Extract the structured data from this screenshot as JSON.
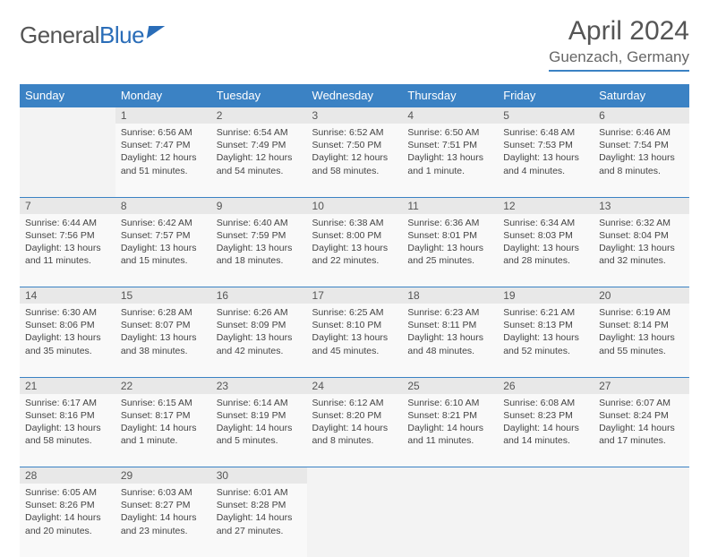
{
  "logo": {
    "word1": "General",
    "word2": "Blue"
  },
  "title": "April 2024",
  "location": "Guenzach, Germany",
  "colors": {
    "header_bg": "#3b82c4",
    "header_text": "#ffffff",
    "daynum_bg": "#e8e8e8",
    "cell_bg": "#f9f9f9",
    "empty_bg": "#f3f3f3",
    "border": "#3b82c4",
    "text": "#444444",
    "title_text": "#555555"
  },
  "layout": {
    "columns": 7,
    "rows": 5,
    "cell_font_size_pt": 8,
    "header_font_size_pt": 10,
    "title_font_size_pt": 22
  },
  "weekdays": [
    "Sunday",
    "Monday",
    "Tuesday",
    "Wednesday",
    "Thursday",
    "Friday",
    "Saturday"
  ],
  "weeks": [
    [
      null,
      {
        "n": "1",
        "sr": "Sunrise: 6:56 AM",
        "ss": "Sunset: 7:47 PM",
        "d1": "Daylight: 12 hours",
        "d2": "and 51 minutes."
      },
      {
        "n": "2",
        "sr": "Sunrise: 6:54 AM",
        "ss": "Sunset: 7:49 PM",
        "d1": "Daylight: 12 hours",
        "d2": "and 54 minutes."
      },
      {
        "n": "3",
        "sr": "Sunrise: 6:52 AM",
        "ss": "Sunset: 7:50 PM",
        "d1": "Daylight: 12 hours",
        "d2": "and 58 minutes."
      },
      {
        "n": "4",
        "sr": "Sunrise: 6:50 AM",
        "ss": "Sunset: 7:51 PM",
        "d1": "Daylight: 13 hours",
        "d2": "and 1 minute."
      },
      {
        "n": "5",
        "sr": "Sunrise: 6:48 AM",
        "ss": "Sunset: 7:53 PM",
        "d1": "Daylight: 13 hours",
        "d2": "and 4 minutes."
      },
      {
        "n": "6",
        "sr": "Sunrise: 6:46 AM",
        "ss": "Sunset: 7:54 PM",
        "d1": "Daylight: 13 hours",
        "d2": "and 8 minutes."
      }
    ],
    [
      {
        "n": "7",
        "sr": "Sunrise: 6:44 AM",
        "ss": "Sunset: 7:56 PM",
        "d1": "Daylight: 13 hours",
        "d2": "and 11 minutes."
      },
      {
        "n": "8",
        "sr": "Sunrise: 6:42 AM",
        "ss": "Sunset: 7:57 PM",
        "d1": "Daylight: 13 hours",
        "d2": "and 15 minutes."
      },
      {
        "n": "9",
        "sr": "Sunrise: 6:40 AM",
        "ss": "Sunset: 7:59 PM",
        "d1": "Daylight: 13 hours",
        "d2": "and 18 minutes."
      },
      {
        "n": "10",
        "sr": "Sunrise: 6:38 AM",
        "ss": "Sunset: 8:00 PM",
        "d1": "Daylight: 13 hours",
        "d2": "and 22 minutes."
      },
      {
        "n": "11",
        "sr": "Sunrise: 6:36 AM",
        "ss": "Sunset: 8:01 PM",
        "d1": "Daylight: 13 hours",
        "d2": "and 25 minutes."
      },
      {
        "n": "12",
        "sr": "Sunrise: 6:34 AM",
        "ss": "Sunset: 8:03 PM",
        "d1": "Daylight: 13 hours",
        "d2": "and 28 minutes."
      },
      {
        "n": "13",
        "sr": "Sunrise: 6:32 AM",
        "ss": "Sunset: 8:04 PM",
        "d1": "Daylight: 13 hours",
        "d2": "and 32 minutes."
      }
    ],
    [
      {
        "n": "14",
        "sr": "Sunrise: 6:30 AM",
        "ss": "Sunset: 8:06 PM",
        "d1": "Daylight: 13 hours",
        "d2": "and 35 minutes."
      },
      {
        "n": "15",
        "sr": "Sunrise: 6:28 AM",
        "ss": "Sunset: 8:07 PM",
        "d1": "Daylight: 13 hours",
        "d2": "and 38 minutes."
      },
      {
        "n": "16",
        "sr": "Sunrise: 6:26 AM",
        "ss": "Sunset: 8:09 PM",
        "d1": "Daylight: 13 hours",
        "d2": "and 42 minutes."
      },
      {
        "n": "17",
        "sr": "Sunrise: 6:25 AM",
        "ss": "Sunset: 8:10 PM",
        "d1": "Daylight: 13 hours",
        "d2": "and 45 minutes."
      },
      {
        "n": "18",
        "sr": "Sunrise: 6:23 AM",
        "ss": "Sunset: 8:11 PM",
        "d1": "Daylight: 13 hours",
        "d2": "and 48 minutes."
      },
      {
        "n": "19",
        "sr": "Sunrise: 6:21 AM",
        "ss": "Sunset: 8:13 PM",
        "d1": "Daylight: 13 hours",
        "d2": "and 52 minutes."
      },
      {
        "n": "20",
        "sr": "Sunrise: 6:19 AM",
        "ss": "Sunset: 8:14 PM",
        "d1": "Daylight: 13 hours",
        "d2": "and 55 minutes."
      }
    ],
    [
      {
        "n": "21",
        "sr": "Sunrise: 6:17 AM",
        "ss": "Sunset: 8:16 PM",
        "d1": "Daylight: 13 hours",
        "d2": "and 58 minutes."
      },
      {
        "n": "22",
        "sr": "Sunrise: 6:15 AM",
        "ss": "Sunset: 8:17 PM",
        "d1": "Daylight: 14 hours",
        "d2": "and 1 minute."
      },
      {
        "n": "23",
        "sr": "Sunrise: 6:14 AM",
        "ss": "Sunset: 8:19 PM",
        "d1": "Daylight: 14 hours",
        "d2": "and 5 minutes."
      },
      {
        "n": "24",
        "sr": "Sunrise: 6:12 AM",
        "ss": "Sunset: 8:20 PM",
        "d1": "Daylight: 14 hours",
        "d2": "and 8 minutes."
      },
      {
        "n": "25",
        "sr": "Sunrise: 6:10 AM",
        "ss": "Sunset: 8:21 PM",
        "d1": "Daylight: 14 hours",
        "d2": "and 11 minutes."
      },
      {
        "n": "26",
        "sr": "Sunrise: 6:08 AM",
        "ss": "Sunset: 8:23 PM",
        "d1": "Daylight: 14 hours",
        "d2": "and 14 minutes."
      },
      {
        "n": "27",
        "sr": "Sunrise: 6:07 AM",
        "ss": "Sunset: 8:24 PM",
        "d1": "Daylight: 14 hours",
        "d2": "and 17 minutes."
      }
    ],
    [
      {
        "n": "28",
        "sr": "Sunrise: 6:05 AM",
        "ss": "Sunset: 8:26 PM",
        "d1": "Daylight: 14 hours",
        "d2": "and 20 minutes."
      },
      {
        "n": "29",
        "sr": "Sunrise: 6:03 AM",
        "ss": "Sunset: 8:27 PM",
        "d1": "Daylight: 14 hours",
        "d2": "and 23 minutes."
      },
      {
        "n": "30",
        "sr": "Sunrise: 6:01 AM",
        "ss": "Sunset: 8:28 PM",
        "d1": "Daylight: 14 hours",
        "d2": "and 27 minutes."
      },
      null,
      null,
      null,
      null
    ]
  ]
}
